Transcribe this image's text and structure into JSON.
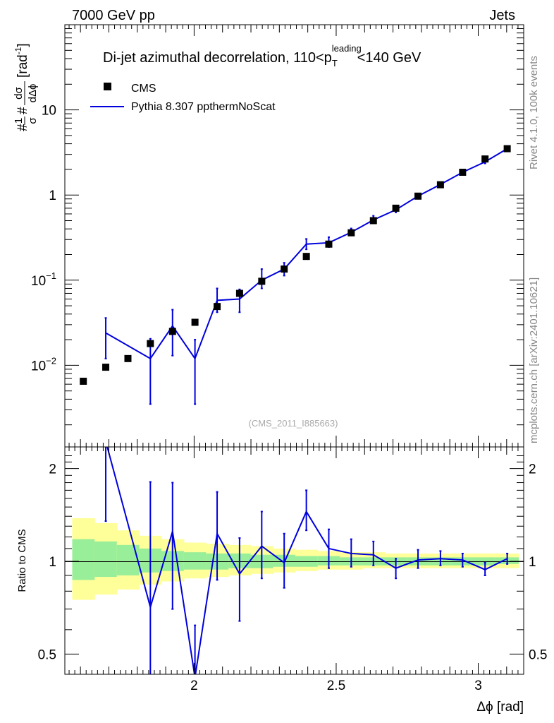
{
  "header": {
    "left_label": "7000 GeV pp",
    "right_label": "Jets"
  },
  "side_labels": {
    "rivet": "Rivet 4.1.0,  100k events",
    "site": "mcplots.cern.ch [arXiv:2401.10621]"
  },
  "chart_data": [
    {
      "type": "scatter",
      "panel": "main",
      "title_parts": {
        "main": "Di-jet azimuthal decorrelation, 110<p",
        "sub": "T",
        "sup": "leading",
        "tail": "<140 GeV"
      },
      "ylabel": "#frac{1}{#sigma}#frac{d#sigma}{d#Delta#phi} [rad^{-1}]",
      "ylabel_parts": {
        "num1": "1",
        "den1": "σ",
        "num2": "dσ",
        "den2": "dΔϕ",
        "hash": "#",
        "unit": "[rad",
        "unit_exp": "-1",
        "unit_close": "]"
      },
      "xlabel": "Δϕ [rad]",
      "yscale": "log",
      "xlim": [
        1.545,
        3.16
      ],
      "ylim": [
        0.0011,
        100
      ],
      "y_ticks": [
        {
          "v": 0.01,
          "base": "10",
          "exp": "−2"
        },
        {
          "v": 0.1,
          "base": "10",
          "exp": "−1"
        },
        {
          "v": 1,
          "label": "1"
        },
        {
          "v": 10,
          "label": "10"
        }
      ],
      "legend": [
        {
          "name": "CMS",
          "marker": "square",
          "color": "#000000"
        },
        {
          "name": "Pythia 8.307 ppthermNoScat",
          "marker": "line",
          "color": "#0000dd"
        }
      ],
      "watermark": "(CMS_2011_I885663)",
      "series": [
        {
          "name": "CMS",
          "x": [
            1.61,
            1.689,
            1.767,
            1.846,
            1.924,
            2.003,
            2.081,
            2.16,
            2.238,
            2.317,
            2.395,
            2.474,
            2.553,
            2.631,
            2.71,
            2.788,
            2.867,
            2.945,
            3.024,
            3.102
          ],
          "y": [
            0.0065,
            0.0095,
            0.012,
            0.018,
            0.025,
            0.032,
            0.049,
            0.07,
            0.097,
            0.135,
            0.19,
            0.265,
            0.36,
            0.5,
            0.7,
            0.97,
            1.32,
            1.85,
            2.65,
            3.5
          ]
        },
        {
          "name": "Pythia 8.307 ppthermNoScat",
          "x": [
            1.689,
            1.846,
            1.924,
            2.003,
            2.081,
            2.16,
            2.238,
            2.317,
            2.395,
            2.474,
            2.553,
            2.631,
            2.71,
            2.788,
            2.867,
            2.945,
            3.024,
            3.102
          ],
          "y": [
            0.024,
            0.012,
            0.029,
            0.012,
            0.058,
            0.06,
            0.1,
            0.135,
            0.265,
            0.275,
            0.365,
            0.51,
            0.67,
            0.97,
            1.33,
            1.85,
            2.45,
            3.5
          ],
          "err_low": [
            0.012,
            0.0085,
            0.016,
            0.0085,
            0.016,
            0.018,
            0.02,
            0.022,
            0.035,
            0.03,
            0.03,
            0.04,
            0.045,
            0.06,
            0.07,
            0.09,
            0.1,
            0.12
          ],
          "err_high": [
            0.012,
            0.0085,
            0.016,
            0.008,
            0.022,
            0.018,
            0.035,
            0.025,
            0.04,
            0.045,
            0.04,
            0.06,
            0.05,
            0.06,
            0.07,
            0.09,
            0.1,
            0.12
          ]
        }
      ]
    },
    {
      "type": "line",
      "panel": "ratio",
      "ylabel": "Ratio to CMS",
      "xlabel": "Δϕ [rad]",
      "yscale": "log",
      "xlim": [
        1.545,
        3.16
      ],
      "ylim": [
        0.43,
        2.35
      ],
      "y_ticks": [
        {
          "v": 0.5,
          "label": "0.5"
        },
        {
          "v": 1,
          "label": "1"
        },
        {
          "v": 2,
          "label": "2"
        }
      ],
      "x_ticks": [
        {
          "v": 2,
          "label": "2"
        },
        {
          "v": 2.5,
          "label": "2.5"
        },
        {
          "v": 3,
          "label": "3"
        }
      ],
      "bands": {
        "edges": [
          1.571,
          1.65,
          1.728,
          1.807,
          1.885,
          1.964,
          2.042,
          2.121,
          2.199,
          2.278,
          2.356,
          2.435,
          2.513,
          2.592,
          2.67,
          2.749,
          2.827,
          2.906,
          2.985,
          3.063,
          3.142
        ],
        "yellow_low": [
          0.75,
          0.78,
          0.81,
          0.84,
          0.86,
          0.88,
          0.89,
          0.9,
          0.91,
          0.92,
          0.93,
          0.94,
          0.94,
          0.95,
          0.95,
          0.95,
          0.95,
          0.95,
          0.95,
          0.95
        ],
        "yellow_high": [
          1.38,
          1.33,
          1.26,
          1.21,
          1.18,
          1.15,
          1.14,
          1.13,
          1.12,
          1.1,
          1.09,
          1.08,
          1.07,
          1.07,
          1.06,
          1.06,
          1.06,
          1.06,
          1.06,
          1.06
        ],
        "green_low": [
          0.87,
          0.89,
          0.9,
          0.92,
          0.93,
          0.94,
          0.94,
          0.95,
          0.95,
          0.96,
          0.96,
          0.97,
          0.97,
          0.97,
          0.97,
          0.97,
          0.97,
          0.97,
          0.97,
          0.98
        ],
        "green_high": [
          1.18,
          1.16,
          1.13,
          1.1,
          1.08,
          1.07,
          1.06,
          1.06,
          1.05,
          1.05,
          1.04,
          1.04,
          1.03,
          1.03,
          1.03,
          1.03,
          1.03,
          1.03,
          1.03,
          1.03
        ]
      },
      "series": [
        {
          "name": "Pythia 8.307 ppthermNoScat / CMS",
          "x": [
            1.689,
            1.846,
            1.924,
            2.003,
            2.081,
            2.16,
            2.238,
            2.317,
            2.395,
            2.474,
            2.553,
            2.631,
            2.71,
            2.788,
            2.867,
            2.945,
            3.024,
            3.102
          ],
          "y": [
            2.45,
            0.71,
            1.25,
            0.42,
            1.23,
            0.91,
            1.12,
            0.99,
            1.45,
            1.1,
            1.06,
            1.05,
            0.95,
            1.01,
            1.02,
            1.01,
            0.94,
            1.02
          ],
          "err_low": [
            1.1,
            0.3,
            0.55,
            0.2,
            0.36,
            0.27,
            0.24,
            0.17,
            0.19,
            0.15,
            0.1,
            0.08,
            0.07,
            0.06,
            0.05,
            0.05,
            0.04,
            0.04
          ],
          "err_high": [
            1.1,
            1.1,
            0.55,
            0.2,
            0.45,
            0.28,
            0.33,
            0.24,
            0.25,
            0.17,
            0.12,
            0.11,
            0.07,
            0.08,
            0.06,
            0.05,
            0.05,
            0.04
          ]
        }
      ]
    }
  ]
}
